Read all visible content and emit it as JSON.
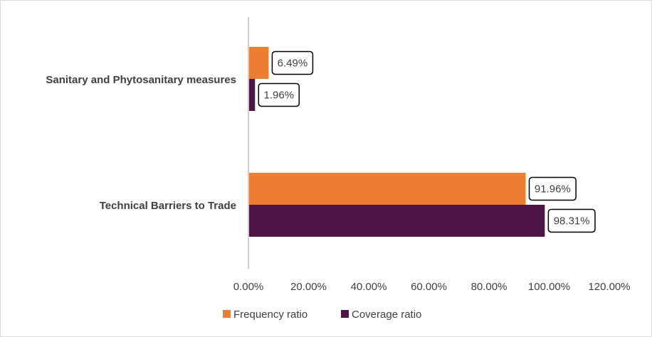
{
  "chart_data": {
    "type": "bar",
    "orientation": "horizontal",
    "categories": [
      "Sanitary and Phytosanitary measures",
      "Technical Barriers to Trade"
    ],
    "series": [
      {
        "name": "Frequency ratio",
        "values": [
          6.49,
          91.96
        ],
        "labels": [
          "6.49%",
          "91.96%"
        ],
        "color": "#ED7D31"
      },
      {
        "name": "Coverage ratio",
        "values": [
          1.96,
          98.31
        ],
        "labels": [
          "1.96%",
          "98.31%"
        ],
        "color": "#4E1548"
      }
    ],
    "xlim": [
      0,
      120
    ],
    "xticks": [
      0,
      20,
      40,
      60,
      80,
      100,
      120
    ],
    "xtick_labels": [
      "0.00%",
      "20.00%",
      "40.00%",
      "60.00%",
      "80.00%",
      "100.00%",
      "120.00%"
    ],
    "gridlines": false,
    "legend": "bottom"
  }
}
